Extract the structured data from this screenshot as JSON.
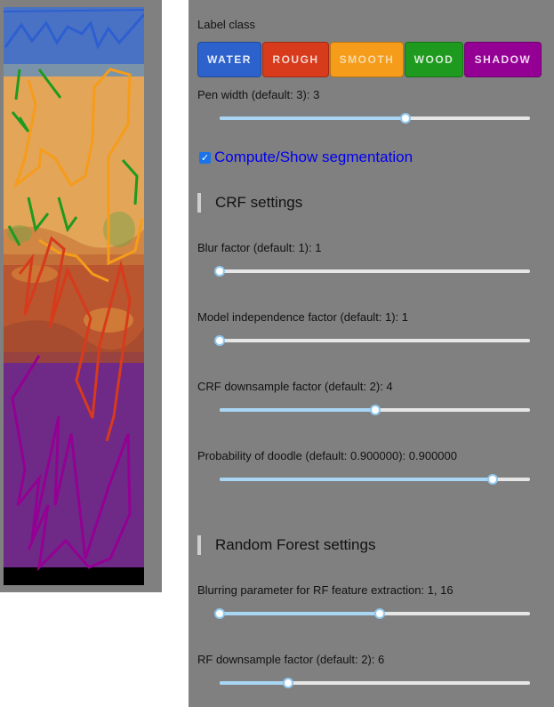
{
  "label_class": {
    "title": "Label class",
    "classes": [
      {
        "label": "WATER",
        "color": "#2d62cc",
        "text_color": "#e9edf7"
      },
      {
        "label": "ROUGH",
        "color": "#d83a1c",
        "text_color": "#f1d6cf"
      },
      {
        "label": "SMOOTH",
        "color": "#f69c1b",
        "text_color": "#f6d9a8"
      },
      {
        "label": "WOOD",
        "color": "#1e9a1e",
        "text_color": "#d6ebd6"
      },
      {
        "label": "SHADOW",
        "color": "#940094",
        "text_color": "#f0d6f0"
      }
    ]
  },
  "pen_width": {
    "label": "Pen width (default: 3): 3",
    "value_fraction": 0.6
  },
  "segmentation": {
    "label": "Compute/Show segmentation",
    "checked": true
  },
  "crf_settings": {
    "heading": "CRF settings",
    "sliders": [
      {
        "label": "Blur factor (default: 1): 1",
        "value_fraction": 0.0
      },
      {
        "label": "Model independence factor (default: 1): 1",
        "value_fraction": 0.0
      },
      {
        "label": "CRF downsample factor (default: 2): 4",
        "value_fraction": 0.5
      },
      {
        "label": "Probability of doodle (default: 0.900000): 0.900000",
        "value_fraction": 0.9
      }
    ]
  },
  "rf_settings": {
    "heading": "Random Forest settings",
    "sliders": [
      {
        "label": "Blurring parameter for RF feature extraction: 1, 16",
        "range": [
          0.0,
          0.515
        ]
      },
      {
        "label": "RF downsample factor (default: 2): 6",
        "value_fraction": 0.22
      }
    ]
  }
}
